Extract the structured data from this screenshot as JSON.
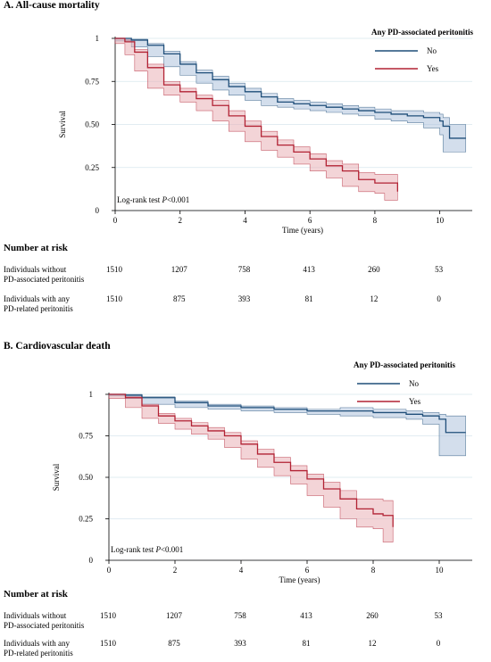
{
  "chart_data": [
    {
      "type": "line",
      "panel_title": "A. All-cause mortality",
      "xlabel": "Time (years)",
      "ylabel": "Survival",
      "xlim": [
        0,
        11
      ],
      "ylim": [
        0,
        1
      ],
      "x_ticks": [
        0,
        2,
        4,
        6,
        8,
        10
      ],
      "y_ticks": [
        0,
        0.25,
        0.5,
        0.75,
        1
      ],
      "y_tick_labels": [
        "0",
        "0.25",
        "0.50",
        "0.75",
        "1"
      ],
      "legend_title": "Any PD-associated peritonitis",
      "legend_position": "top-right",
      "annotation": {
        "prefix": "Log-rank test ",
        "italic": "P",
        "suffix": "<0.001"
      },
      "series": [
        {
          "name": "No",
          "color": "#1f4e79",
          "band_color": "#aec3dc",
          "x": [
            0,
            0.5,
            1,
            1.5,
            2,
            2.5,
            3,
            3.5,
            4,
            4.5,
            5,
            5.5,
            6,
            6.5,
            7,
            7.5,
            8,
            8.5,
            9,
            9.5,
            10,
            10.1,
            10.3,
            10.8
          ],
          "y": [
            1,
            0.99,
            0.96,
            0.91,
            0.85,
            0.8,
            0.76,
            0.72,
            0.69,
            0.66,
            0.63,
            0.62,
            0.61,
            0.6,
            0.59,
            0.58,
            0.57,
            0.56,
            0.55,
            0.54,
            0.52,
            0.49,
            0.42,
            0.42
          ],
          "lower": [
            1,
            0.985,
            0.95,
            0.895,
            0.835,
            0.785,
            0.74,
            0.7,
            0.67,
            0.64,
            0.61,
            0.6,
            0.59,
            0.58,
            0.57,
            0.56,
            0.55,
            0.53,
            0.52,
            0.51,
            0.48,
            0.44,
            0.34,
            0.34
          ],
          "upper": [
            1,
            0.995,
            0.97,
            0.925,
            0.865,
            0.815,
            0.78,
            0.74,
            0.71,
            0.68,
            0.65,
            0.64,
            0.63,
            0.62,
            0.61,
            0.6,
            0.59,
            0.58,
            0.58,
            0.57,
            0.56,
            0.54,
            0.5,
            0.5
          ]
        },
        {
          "name": "Yes",
          "color": "#b22234",
          "band_color": "#eab0b7",
          "x": [
            0,
            0.3,
            0.6,
            1,
            1.5,
            2,
            2.5,
            3,
            3.5,
            4,
            4.5,
            5,
            5.5,
            6,
            6.5,
            7,
            7.5,
            8,
            8.3,
            8.7
          ],
          "y": [
            1,
            0.98,
            0.92,
            0.83,
            0.73,
            0.69,
            0.65,
            0.61,
            0.55,
            0.49,
            0.43,
            0.38,
            0.34,
            0.3,
            0.26,
            0.23,
            0.18,
            0.16,
            0.16,
            0.11
          ],
          "lower": [
            1,
            0.97,
            0.905,
            0.81,
            0.71,
            0.67,
            0.63,
            0.58,
            0.52,
            0.46,
            0.4,
            0.35,
            0.31,
            0.27,
            0.23,
            0.19,
            0.14,
            0.11,
            0.1,
            0.06
          ],
          "upper": [
            1,
            0.99,
            0.935,
            0.85,
            0.75,
            0.71,
            0.67,
            0.64,
            0.58,
            0.52,
            0.46,
            0.41,
            0.37,
            0.33,
            0.29,
            0.27,
            0.22,
            0.21,
            0.21,
            0.2
          ]
        }
      ],
      "risk_table": {
        "title": "Number at risk",
        "rows": [
          {
            "label_line1": "Individuals without",
            "label_line2": "PD-associated peritonitis",
            "values": [
              "1510",
              "1207",
              "758",
              "413",
              "260",
              "53"
            ]
          },
          {
            "label_line1": "Individuals with any",
            "label_line2": "PD-related peritonitis",
            "values": [
              "1510",
              "875",
              "393",
              "81",
              "12",
              "0"
            ]
          }
        ]
      }
    },
    {
      "type": "line",
      "panel_title": "B. Cardiovascular death",
      "xlabel": "Time (years)",
      "ylabel": "Survival",
      "xlim": [
        0,
        11
      ],
      "ylim": [
        0,
        1
      ],
      "x_ticks": [
        0,
        2,
        4,
        6,
        8,
        10
      ],
      "y_ticks": [
        0,
        0.25,
        0.5,
        0.75,
        1
      ],
      "y_tick_labels": [
        "0",
        "0.25",
        "0.50",
        "0.75",
        "1"
      ],
      "legend_title": "Any PD-associated peritonitis",
      "legend_position": "top-right",
      "annotation": {
        "prefix": "Log-rank test ",
        "italic": "P",
        "suffix": "<0.001"
      },
      "series": [
        {
          "name": "No",
          "color": "#1f4e79",
          "band_color": "#aec3dc",
          "x": [
            0,
            0.5,
            1,
            2,
            3,
            4,
            5,
            6,
            7,
            8,
            9,
            9.5,
            10,
            10.2,
            10.8
          ],
          "y": [
            1,
            0.995,
            0.98,
            0.95,
            0.93,
            0.92,
            0.91,
            0.9,
            0.9,
            0.89,
            0.88,
            0.87,
            0.85,
            0.77,
            0.77
          ],
          "lower": [
            1,
            0.99,
            0.975,
            0.94,
            0.92,
            0.91,
            0.9,
            0.89,
            0.88,
            0.87,
            0.86,
            0.85,
            0.82,
            0.63,
            0.63
          ],
          "upper": [
            1,
            1.0,
            0.985,
            0.96,
            0.94,
            0.93,
            0.92,
            0.91,
            0.92,
            0.91,
            0.9,
            0.89,
            0.88,
            0.87,
            0.87
          ]
        },
        {
          "name": "Yes",
          "color": "#b22234",
          "band_color": "#eab0b7",
          "x": [
            0,
            0.5,
            1,
            1.5,
            2,
            2.5,
            3,
            3.5,
            4,
            4.5,
            5,
            5.5,
            6,
            6.5,
            7,
            7.5,
            8,
            8.3,
            8.6
          ],
          "y": [
            1,
            0.98,
            0.93,
            0.87,
            0.84,
            0.81,
            0.78,
            0.75,
            0.7,
            0.64,
            0.59,
            0.54,
            0.49,
            0.43,
            0.37,
            0.31,
            0.28,
            0.27,
            0.2
          ],
          "lower": [
            1,
            0.975,
            0.92,
            0.855,
            0.825,
            0.79,
            0.76,
            0.73,
            0.68,
            0.61,
            0.56,
            0.51,
            0.46,
            0.39,
            0.32,
            0.25,
            0.2,
            0.19,
            0.11
          ],
          "upper": [
            1,
            0.985,
            0.94,
            0.885,
            0.855,
            0.83,
            0.8,
            0.77,
            0.72,
            0.67,
            0.62,
            0.57,
            0.52,
            0.47,
            0.42,
            0.37,
            0.37,
            0.36,
            0.35
          ]
        }
      ],
      "risk_table": {
        "title": "Number at risk",
        "rows": [
          {
            "label_line1": "Individuals without",
            "label_line2": "PD-associated peritonitis",
            "values": [
              "1510",
              "1207",
              "758",
              "413",
              "260",
              "53"
            ]
          },
          {
            "label_line1": "Individuals with any",
            "label_line2": "PD-related peritonitis",
            "values": [
              "1510",
              "875",
              "393",
              "81",
              "12",
              "0"
            ]
          }
        ]
      }
    }
  ]
}
